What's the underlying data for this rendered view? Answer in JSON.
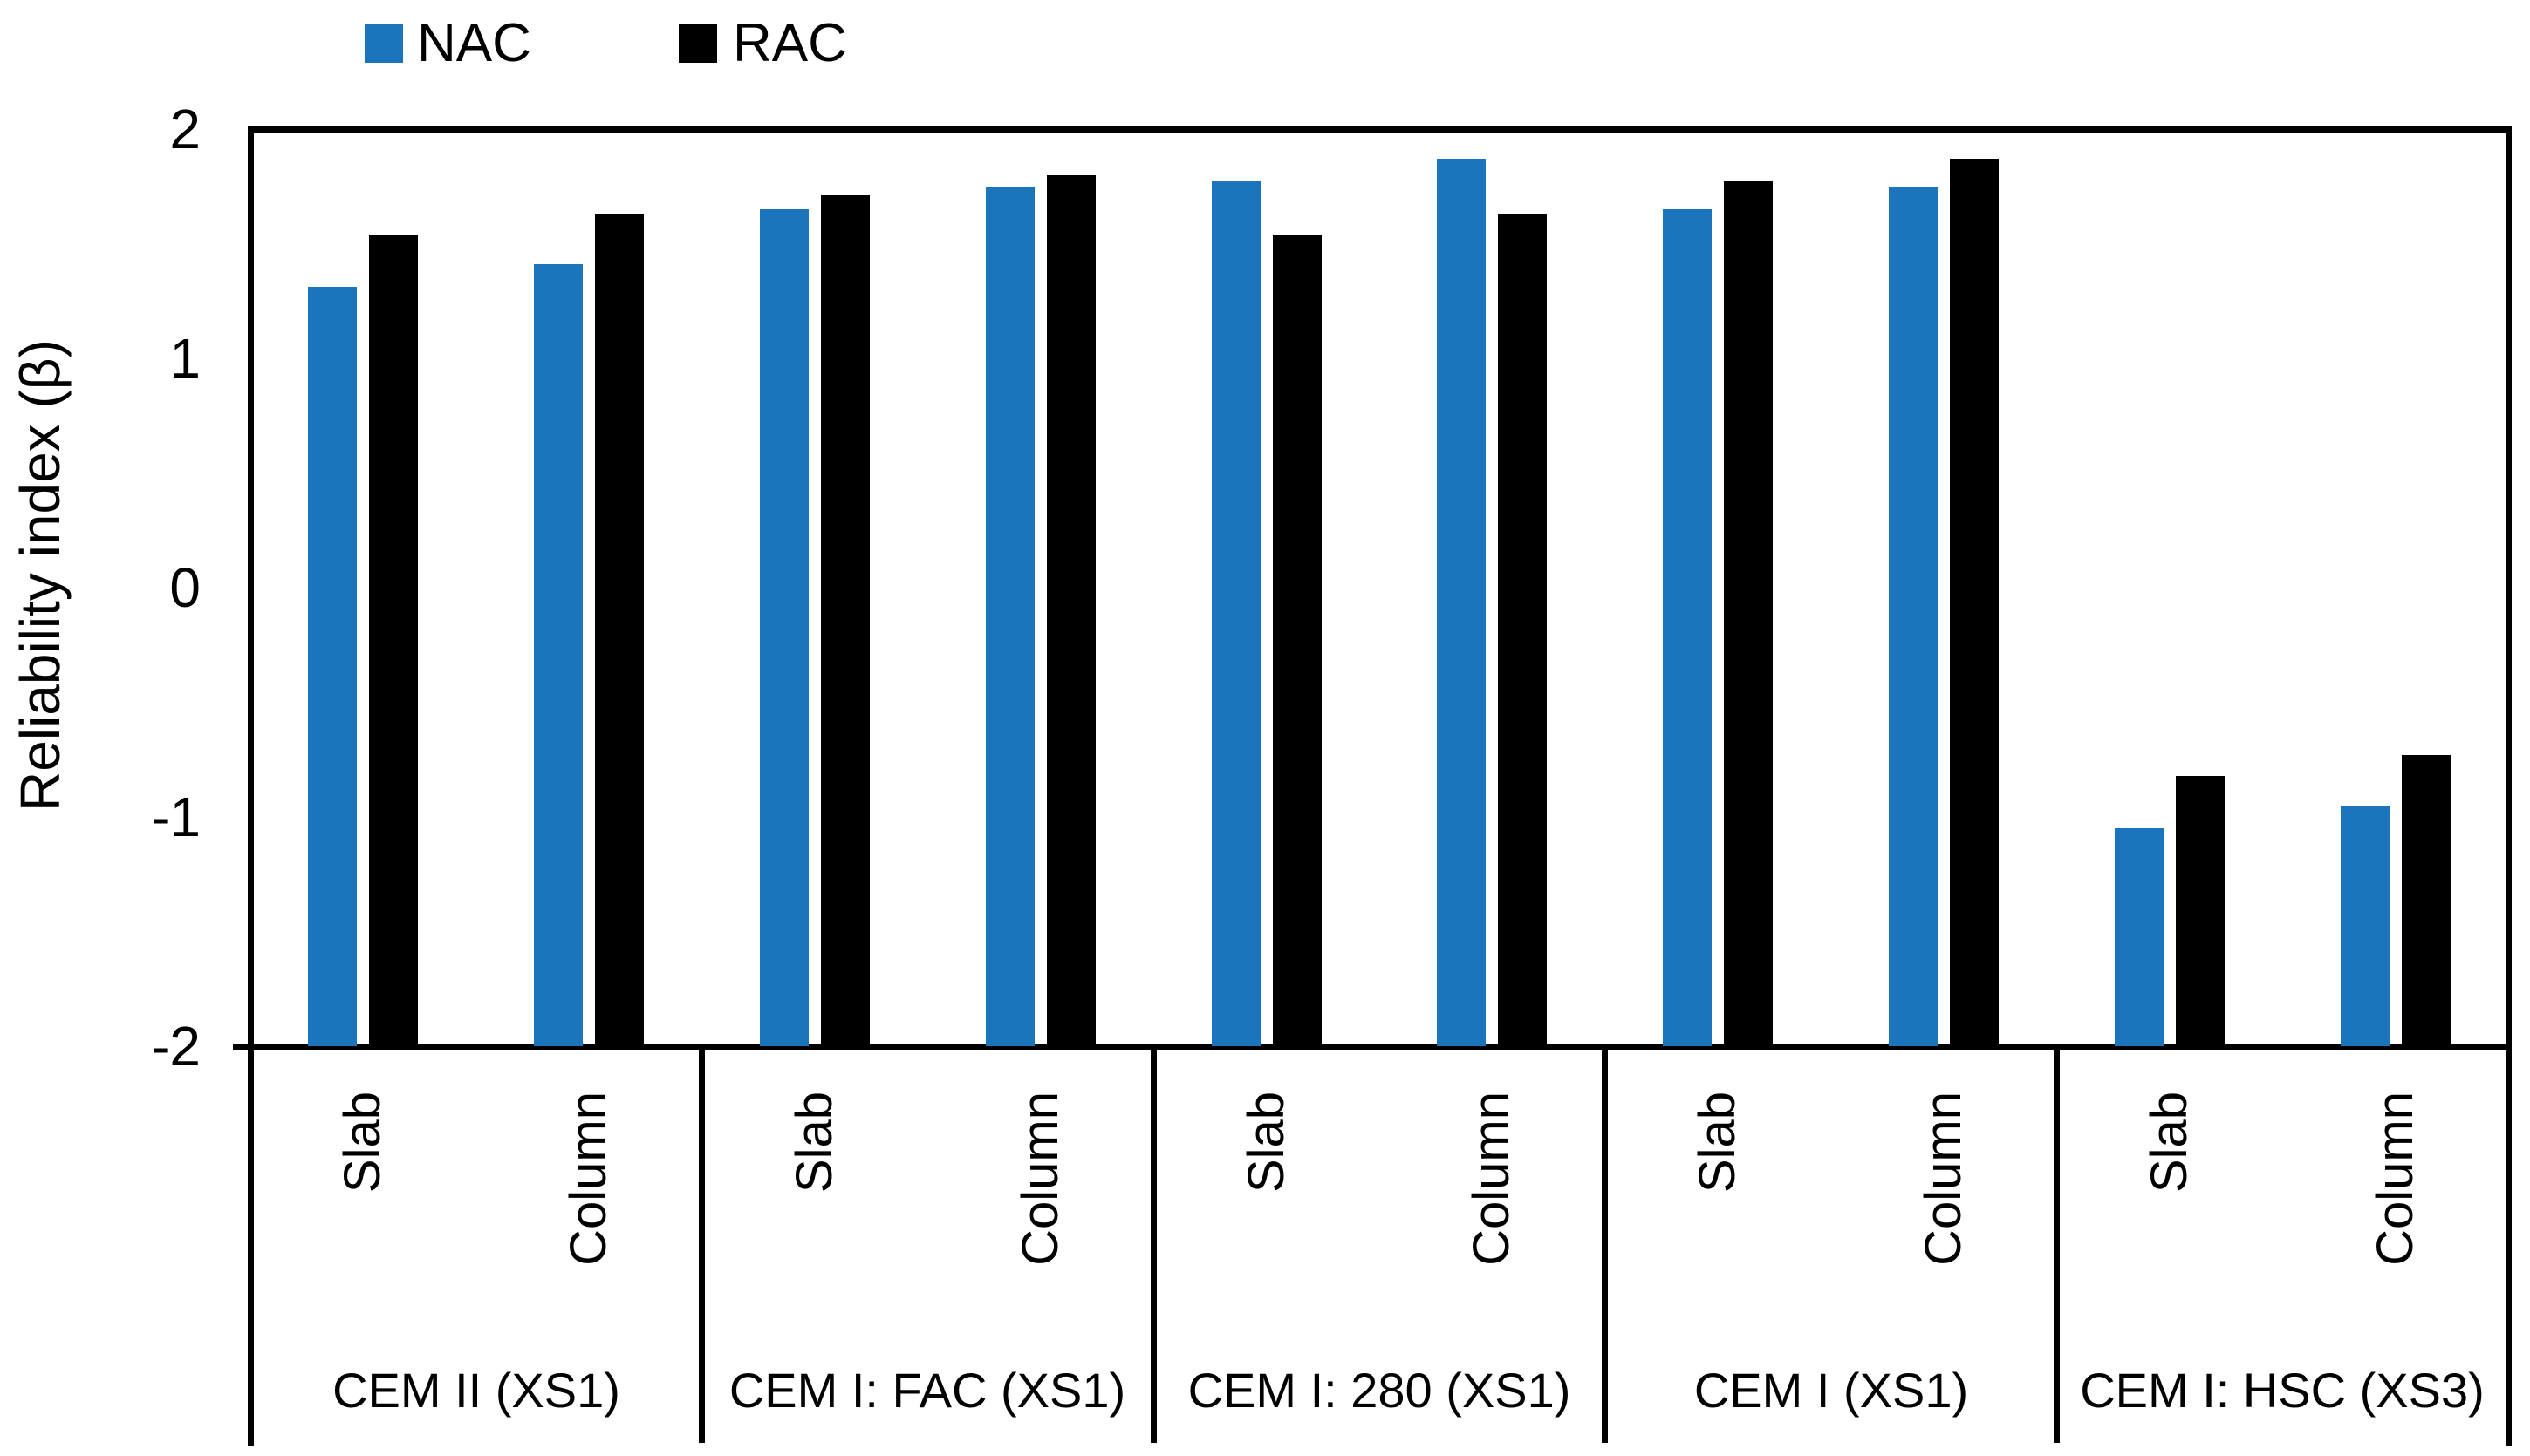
{
  "chart_data": {
    "type": "bar",
    "title": "",
    "ylabel": "Reliability index (β)",
    "xlabel": "",
    "ylim": [
      -2,
      2
    ],
    "yticks": [
      2,
      1,
      0,
      -1,
      -2
    ],
    "ytick_labels": [
      "2",
      "1",
      "0",
      "-1",
      "-2"
    ],
    "bar_base": -2,
    "grid": false,
    "legend_position": "top",
    "legend": [
      {
        "label": "NAC",
        "color": "#1B75BC"
      },
      {
        "label": "RAC",
        "color": "#000000"
      }
    ],
    "subcategories": [
      "Slab",
      "Column"
    ],
    "groups": [
      {
        "label": "CEM II (XS1)",
        "bars": [
          {
            "sub": "Slab",
            "NAC": 1.31,
            "RAC": 1.54
          },
          {
            "sub": "Column",
            "NAC": 1.41,
            "RAC": 1.63
          }
        ]
      },
      {
        "label": "CEM I: FAC (XS1)",
        "bars": [
          {
            "sub": "Slab",
            "NAC": 1.65,
            "RAC": 1.71
          },
          {
            "sub": "Column",
            "NAC": 1.75,
            "RAC": 1.8
          }
        ]
      },
      {
        "label": "CEM I: 280 (XS1)",
        "bars": [
          {
            "sub": "Slab",
            "NAC": 1.77,
            "RAC": 1.54
          },
          {
            "sub": "Column",
            "NAC": 1.87,
            "RAC": 1.63
          }
        ]
      },
      {
        "label": "CEM I (XS1)",
        "bars": [
          {
            "sub": "Slab",
            "NAC": 1.65,
            "RAC": 1.77
          },
          {
            "sub": "Column",
            "NAC": 1.75,
            "RAC": 1.87
          }
        ]
      },
      {
        "label": "CEM I: HSC (XS3)",
        "bars": [
          {
            "sub": "Slab",
            "NAC": -1.05,
            "RAC": -0.82
          },
          {
            "sub": "Column",
            "NAC": -0.95,
            "RAC": -0.73
          }
        ]
      }
    ],
    "colors": {
      "axis": "#000000",
      "background": "#FFFFFF"
    }
  }
}
